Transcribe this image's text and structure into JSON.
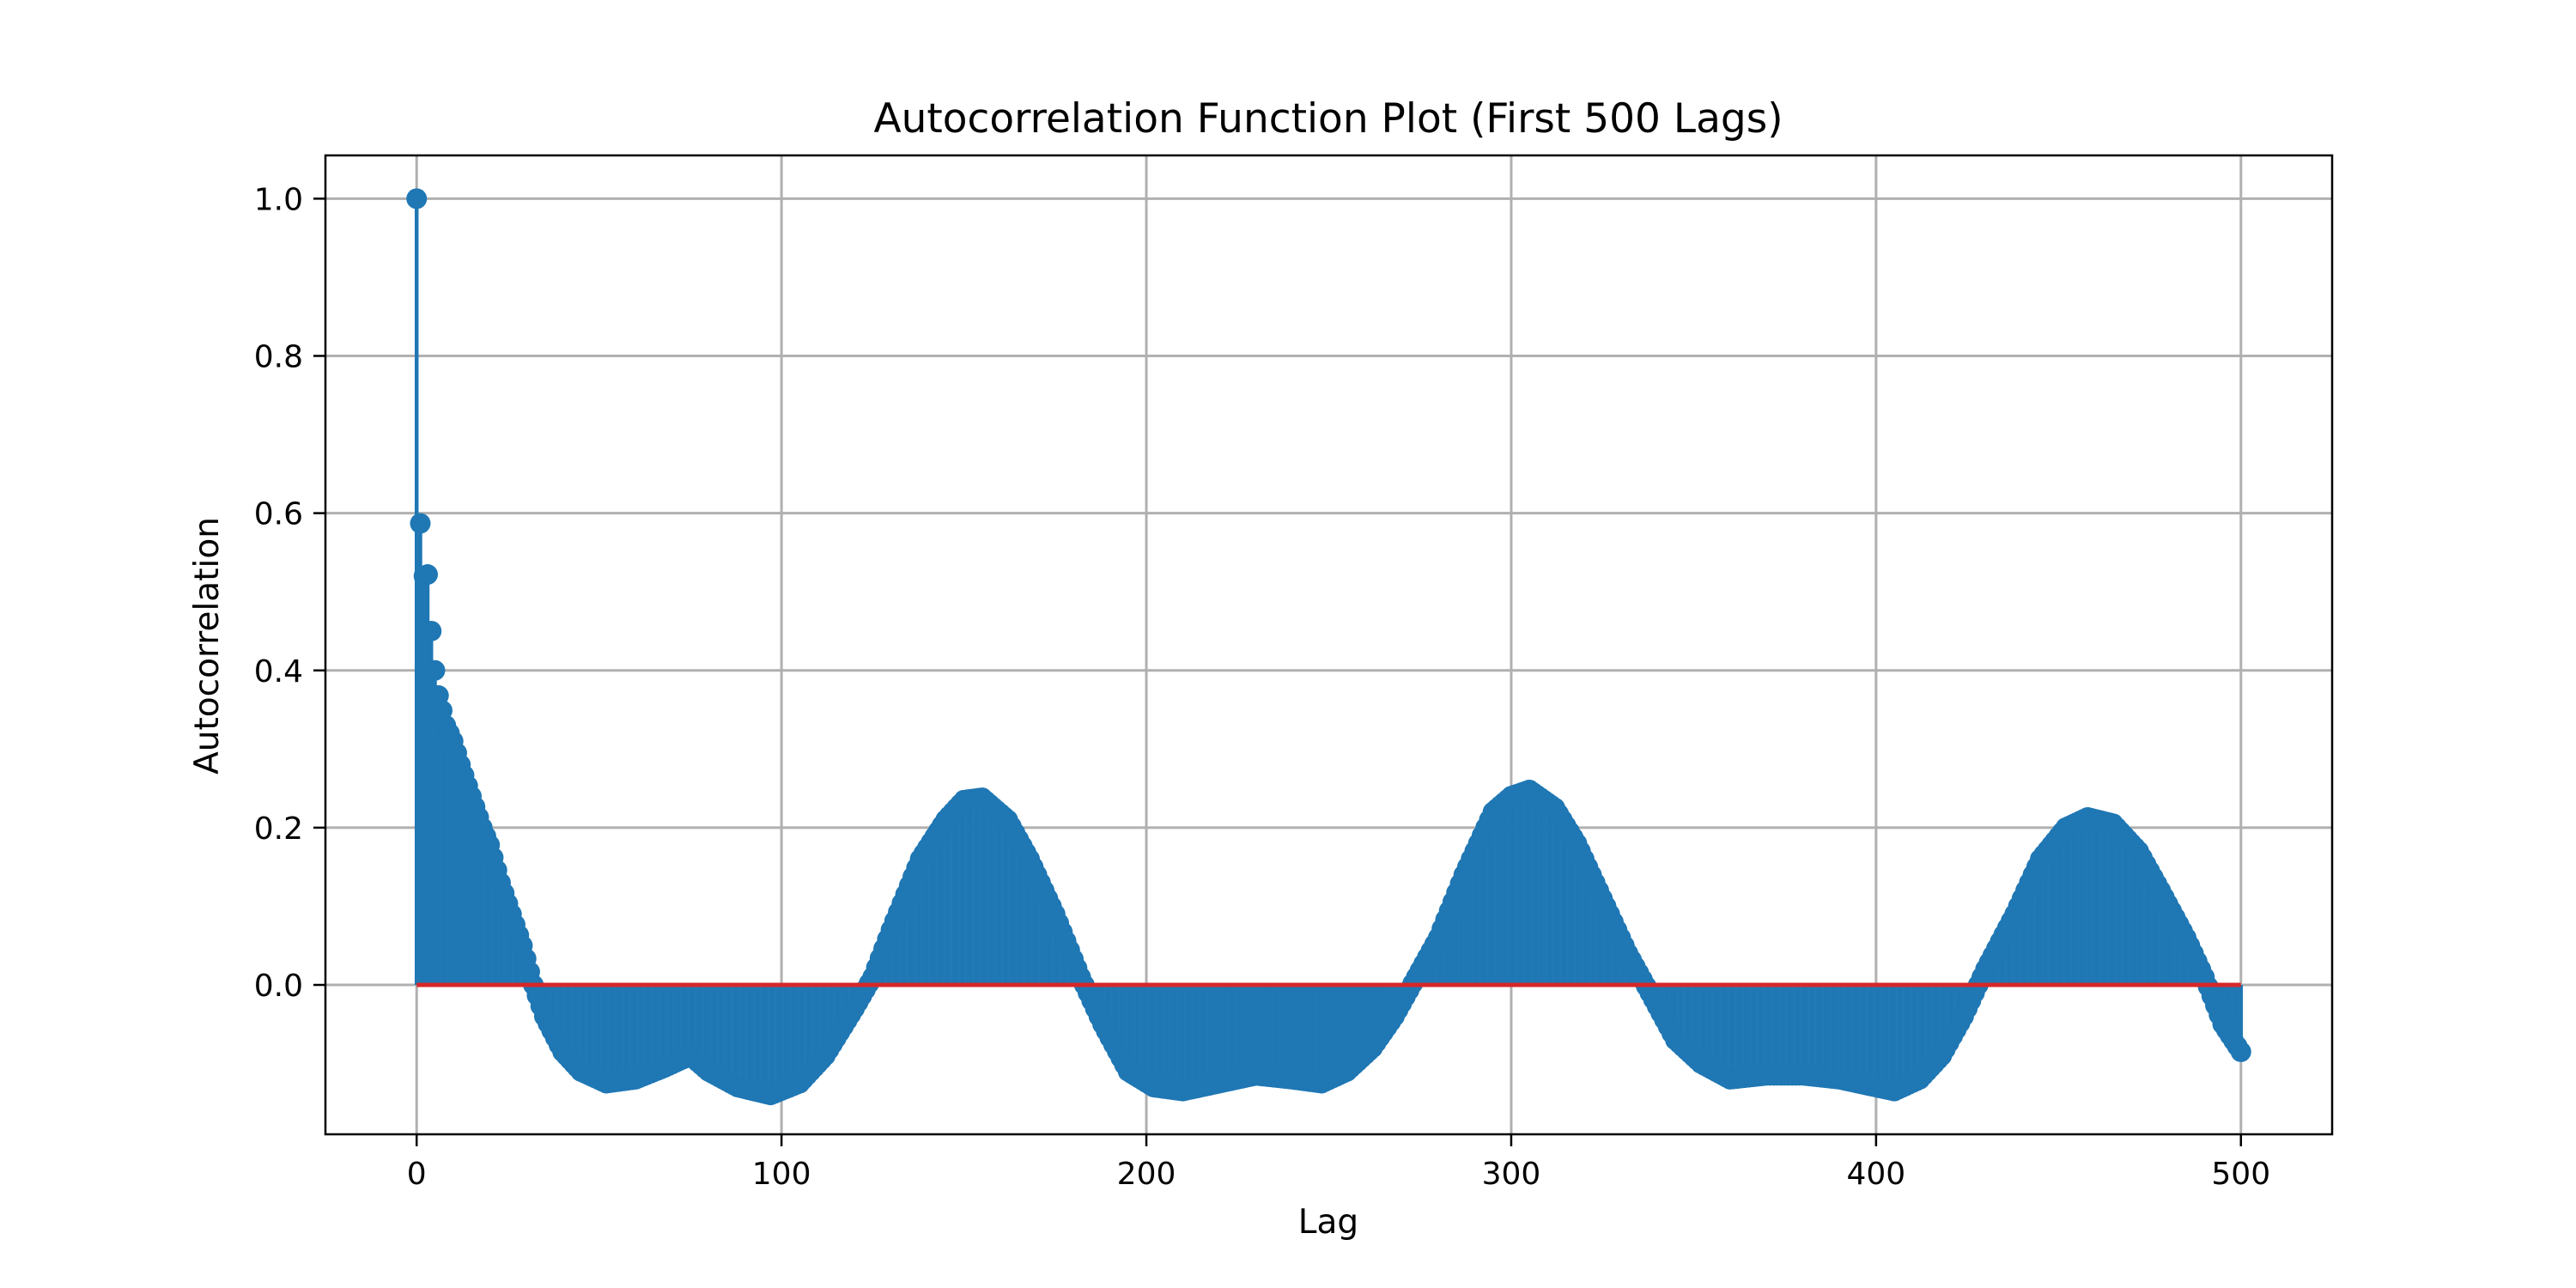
{
  "chart_data": {
    "type": "stem",
    "title": "Autocorrelation Function Plot (First 500 Lags)",
    "xlabel": "Lag",
    "ylabel": "Autocorrelation",
    "xlim": [
      -25,
      525
    ],
    "ylim": [
      -0.19,
      1.055
    ],
    "xticks": [
      0,
      100,
      200,
      300,
      400,
      500
    ],
    "xtick_labels": [
      "0",
      "100",
      "200",
      "300",
      "400",
      "500"
    ],
    "yticks": [
      0.0,
      0.2,
      0.4,
      0.6,
      0.8,
      1.0
    ],
    "ytick_labels": [
      "0.0",
      "0.2",
      "0.4",
      "0.6",
      "0.8",
      "1.0"
    ],
    "grid": true,
    "baseline": 0.0,
    "colors": {
      "stem": "#1f77b4",
      "marker": "#1f77b4",
      "baseline": "#d62728",
      "grid": "#b0b0b0"
    },
    "series": {
      "lag_start": 0,
      "lag_end": 500,
      "key_values": [
        [
          0,
          1.0
        ],
        [
          1,
          0.587
        ],
        [
          2,
          0.52
        ],
        [
          3,
          0.522
        ],
        [
          4,
          0.45
        ],
        [
          5,
          0.4
        ],
        [
          6,
          0.368
        ],
        [
          8,
          0.33
        ],
        [
          10,
          0.31
        ],
        [
          12,
          0.28
        ],
        [
          15,
          0.24
        ],
        [
          18,
          0.2
        ],
        [
          20,
          0.178
        ],
        [
          23,
          0.13
        ],
        [
          26,
          0.09
        ],
        [
          29,
          0.05
        ],
        [
          32,
          0.0
        ],
        [
          35,
          -0.04
        ],
        [
          40,
          -0.085
        ],
        [
          45,
          -0.11
        ],
        [
          52,
          -0.125
        ],
        [
          60,
          -0.12
        ],
        [
          68,
          -0.105
        ],
        [
          75,
          -0.09
        ],
        [
          80,
          -0.11
        ],
        [
          88,
          -0.13
        ],
        [
          97,
          -0.14
        ],
        [
          105,
          -0.125
        ],
        [
          112,
          -0.09
        ],
        [
          120,
          -0.03
        ],
        [
          125,
          0.01
        ],
        [
          130,
          0.07
        ],
        [
          138,
          0.16
        ],
        [
          145,
          0.21
        ],
        [
          150,
          0.235
        ],
        [
          155,
          0.238
        ],
        [
          162,
          0.21
        ],
        [
          168,
          0.16
        ],
        [
          175,
          0.09
        ],
        [
          182,
          0.01
        ],
        [
          188,
          -0.05
        ],
        [
          195,
          -0.11
        ],
        [
          202,
          -0.13
        ],
        [
          210,
          -0.135
        ],
        [
          220,
          -0.125
        ],
        [
          230,
          -0.115
        ],
        [
          240,
          -0.12
        ],
        [
          248,
          -0.125
        ],
        [
          255,
          -0.11
        ],
        [
          262,
          -0.08
        ],
        [
          268,
          -0.04
        ],
        [
          274,
          0.01
        ],
        [
          280,
          0.06
        ],
        [
          287,
          0.14
        ],
        [
          295,
          0.22
        ],
        [
          300,
          0.24
        ],
        [
          305,
          0.248
        ],
        [
          312,
          0.225
        ],
        [
          318,
          0.18
        ],
        [
          325,
          0.11
        ],
        [
          332,
          0.04
        ],
        [
          338,
          -0.01
        ],
        [
          345,
          -0.07
        ],
        [
          352,
          -0.1
        ],
        [
          360,
          -0.12
        ],
        [
          370,
          -0.115
        ],
        [
          380,
          -0.115
        ],
        [
          390,
          -0.12
        ],
        [
          400,
          -0.13
        ],
        [
          405,
          -0.135
        ],
        [
          412,
          -0.12
        ],
        [
          418,
          -0.09
        ],
        [
          424,
          -0.04
        ],
        [
          430,
          0.02
        ],
        [
          438,
          0.09
        ],
        [
          445,
          0.16
        ],
        [
          452,
          0.2
        ],
        [
          458,
          0.213
        ],
        [
          465,
          0.205
        ],
        [
          472,
          0.17
        ],
        [
          478,
          0.12
        ],
        [
          485,
          0.06
        ],
        [
          490,
          0.01
        ],
        [
          495,
          -0.05
        ],
        [
          500,
          -0.085
        ]
      ]
    }
  }
}
